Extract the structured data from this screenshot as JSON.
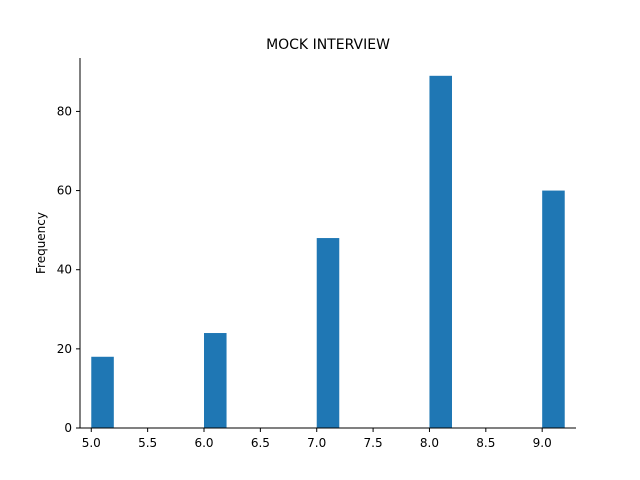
{
  "chart_data": {
    "type": "bar",
    "title": "MOCK INTERVIEW",
    "xlabel": "",
    "ylabel": "Frequency",
    "bins": [
      {
        "start": 5.0,
        "end": 5.2,
        "count": 18
      },
      {
        "start": 6.0,
        "end": 6.2,
        "count": 24
      },
      {
        "start": 7.0,
        "end": 7.2,
        "count": 48
      },
      {
        "start": 8.0,
        "end": 8.2,
        "count": 89
      },
      {
        "start": 9.0,
        "end": 9.2,
        "count": 60
      }
    ],
    "xlim": [
      4.9,
      9.3
    ],
    "ylim": [
      0,
      93.5
    ],
    "x_ticks": [
      "5.0",
      "5.5",
      "6.0",
      "6.5",
      "7.0",
      "7.5",
      "8.0",
      "8.5",
      "9.0"
    ],
    "y_ticks": [
      "0",
      "20",
      "40",
      "60",
      "80"
    ],
    "bar_color": "#1f77b4",
    "grid": false,
    "legend": "none"
  }
}
